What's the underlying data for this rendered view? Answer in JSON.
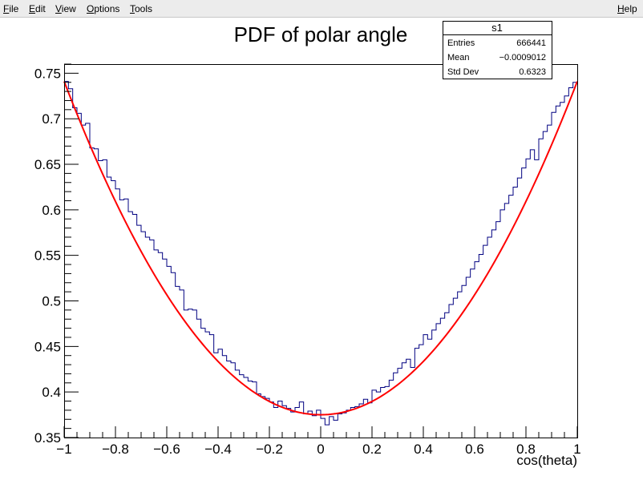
{
  "menu": {
    "file": "File",
    "edit": "Edit",
    "view": "View",
    "options": "Options",
    "tools": "Tools",
    "help": "Help"
  },
  "stats": {
    "title": "s1",
    "entries_label": "Entries",
    "entries_value": "666441",
    "mean_label": "Mean",
    "mean_value": "−0.0009012",
    "stddev_label": "Std Dev",
    "stddev_value": "0.6323"
  },
  "colors": {
    "histogram": "#000080",
    "fit": "#ff0000",
    "frame": "#000000"
  },
  "chart_data": {
    "type": "line",
    "title": "PDF of polar angle",
    "xlabel": "cos(theta)",
    "ylabel": "",
    "xlim": [
      -1,
      1
    ],
    "ylim": [
      0.35,
      0.76
    ],
    "x_ticks": [
      {
        "v": -1,
        "label": "−1"
      },
      {
        "v": -0.8,
        "label": "−0.8"
      },
      {
        "v": -0.6,
        "label": "−0.6"
      },
      {
        "v": -0.4,
        "label": "−0.4"
      },
      {
        "v": -0.2,
        "label": "−0.2"
      },
      {
        "v": 0,
        "label": "0"
      },
      {
        "v": 0.2,
        "label": "0.2"
      },
      {
        "v": 0.4,
        "label": "0.4"
      },
      {
        "v": 0.6,
        "label": "0.6"
      },
      {
        "v": 0.8,
        "label": "0.8"
      },
      {
        "v": 1,
        "label": "1"
      }
    ],
    "y_ticks": [
      {
        "v": 0.35,
        "label": "0.35"
      },
      {
        "v": 0.4,
        "label": "0.4"
      },
      {
        "v": 0.45,
        "label": "0.45"
      },
      {
        "v": 0.5,
        "label": "0.5"
      },
      {
        "v": 0.55,
        "label": "0.55"
      },
      {
        "v": 0.6,
        "label": "0.6"
      },
      {
        "v": 0.65,
        "label": "0.65"
      },
      {
        "v": 0.7,
        "label": "0.7"
      },
      {
        "v": 0.75,
        "label": "0.75"
      }
    ],
    "histogram": {
      "x_low": -1,
      "x_high": 1,
      "values": [
        0.741,
        0.733,
        0.712,
        0.706,
        0.693,
        0.695,
        0.668,
        0.667,
        0.654,
        0.655,
        0.636,
        0.632,
        0.623,
        0.611,
        0.612,
        0.598,
        0.595,
        0.583,
        0.576,
        0.57,
        0.567,
        0.556,
        0.553,
        0.546,
        0.538,
        0.531,
        0.516,
        0.512,
        0.49,
        0.491,
        0.49,
        0.48,
        0.47,
        0.466,
        0.463,
        0.443,
        0.447,
        0.44,
        0.434,
        0.432,
        0.424,
        0.419,
        0.416,
        0.412,
        0.411,
        0.398,
        0.395,
        0.393,
        0.389,
        0.383,
        0.39,
        0.385,
        0.382,
        0.378,
        0.383,
        0.389,
        0.376,
        0.379,
        0.374,
        0.38,
        0.371,
        0.364,
        0.373,
        0.369,
        0.376,
        0.377,
        0.38,
        0.383,
        0.384,
        0.387,
        0.392,
        0.388,
        0.402,
        0.4,
        0.405,
        0.406,
        0.413,
        0.421,
        0.426,
        0.432,
        0.436,
        0.427,
        0.448,
        0.452,
        0.463,
        0.458,
        0.468,
        0.475,
        0.481,
        0.487,
        0.496,
        0.503,
        0.51,
        0.517,
        0.526,
        0.535,
        0.543,
        0.551,
        0.561,
        0.57,
        0.578,
        0.587,
        0.6,
        0.607,
        0.616,
        0.625,
        0.635,
        0.646,
        0.656,
        0.666,
        0.655,
        0.678,
        0.686,
        0.693,
        0.707,
        0.714,
        0.718,
        0.725,
        0.734,
        0.74
      ]
    },
    "fit": {
      "name": "",
      "formula": "0.375 + 0.366*x^2",
      "a": 0.375,
      "b": 0.366
    }
  }
}
